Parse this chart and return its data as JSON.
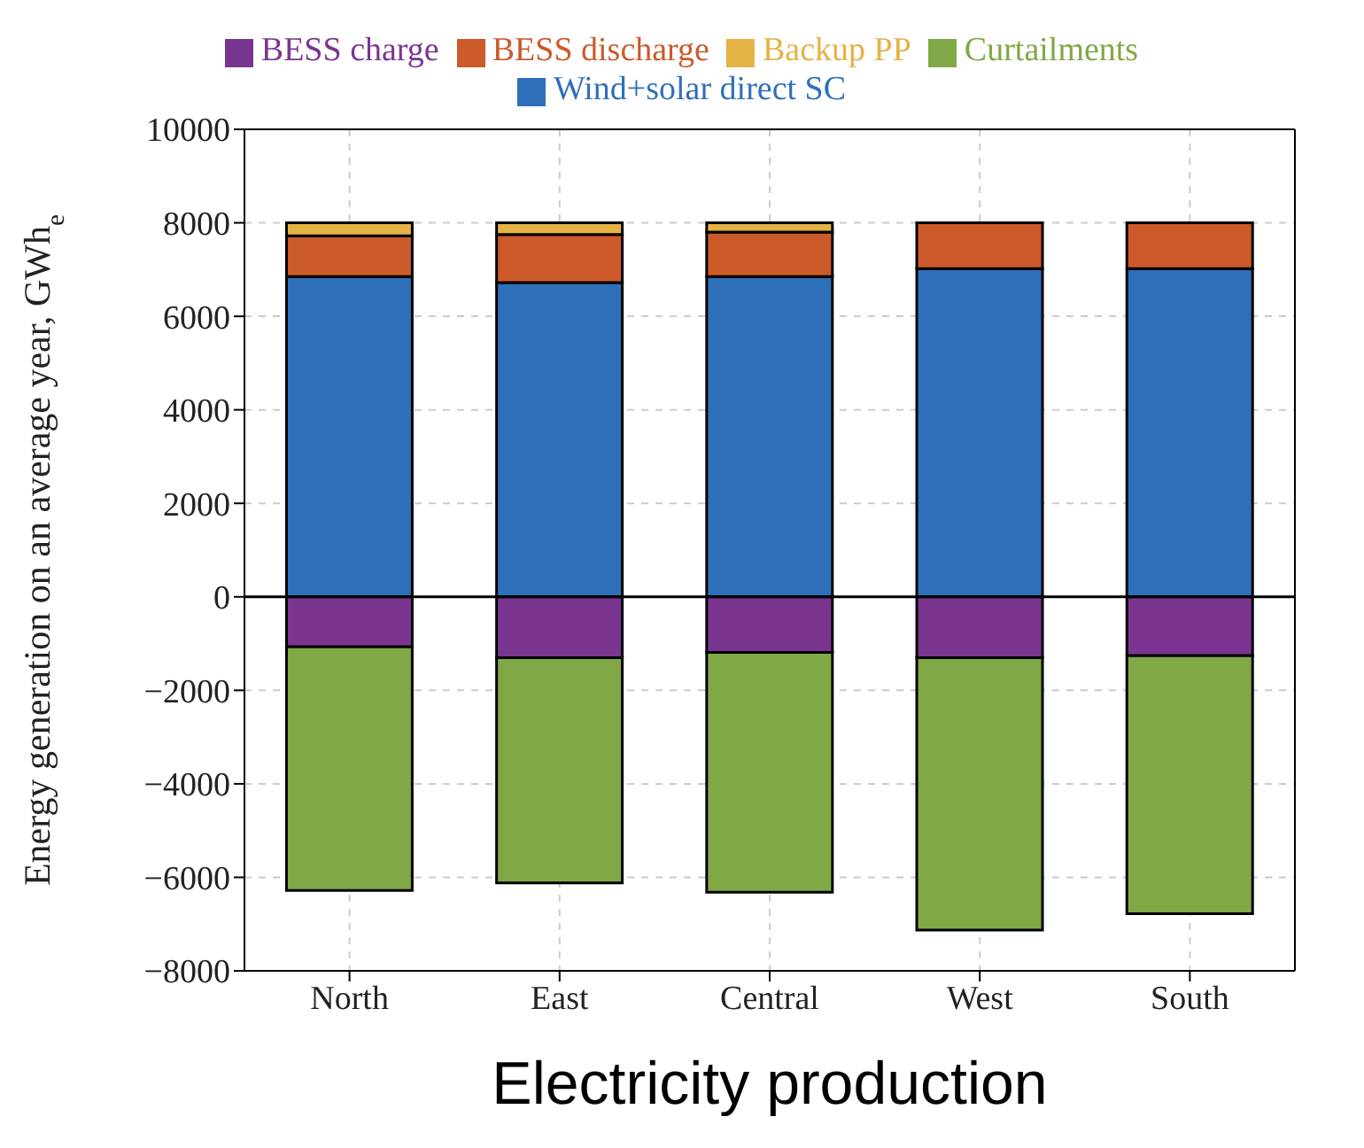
{
  "chart_data": {
    "type": "bar",
    "stacked": true,
    "xlabel": "Electricity production",
    "ylabel": "Energy generation on an average year, GWh$_{e}$",
    "categories": [
      "North",
      "East",
      "Central",
      "West",
      "South"
    ],
    "series": [
      {
        "name": "Wind+solar direct SC",
        "color": "#2e6fba",
        "values": [
          6850,
          6720,
          6850,
          7020,
          7020
        ]
      },
      {
        "name": "BESS discharge",
        "color": "#cc5a2a",
        "values": [
          870,
          1030,
          950,
          980,
          980
        ]
      },
      {
        "name": "Backup PP",
        "color": "#e5b244",
        "values": [
          280,
          250,
          200,
          null,
          null
        ]
      },
      {
        "name": "BESS charge",
        "color": "#7a3590",
        "values": [
          -1070,
          -1300,
          -1190,
          -1300,
          -1260
        ]
      },
      {
        "name": "Curtailments",
        "color": "#80a846",
        "values": [
          -5210,
          -4820,
          -5130,
          -5830,
          -5520
        ]
      }
    ],
    "ylim": [
      -8000,
      10000
    ],
    "yticks": [
      -8000,
      -6000,
      -4000,
      -2000,
      0,
      2000,
      4000,
      6000,
      8000,
      10000
    ],
    "ref_lines": [
      {
        "axis": "y",
        "value": 0
      }
    ],
    "grid": true,
    "legend": "top"
  }
}
